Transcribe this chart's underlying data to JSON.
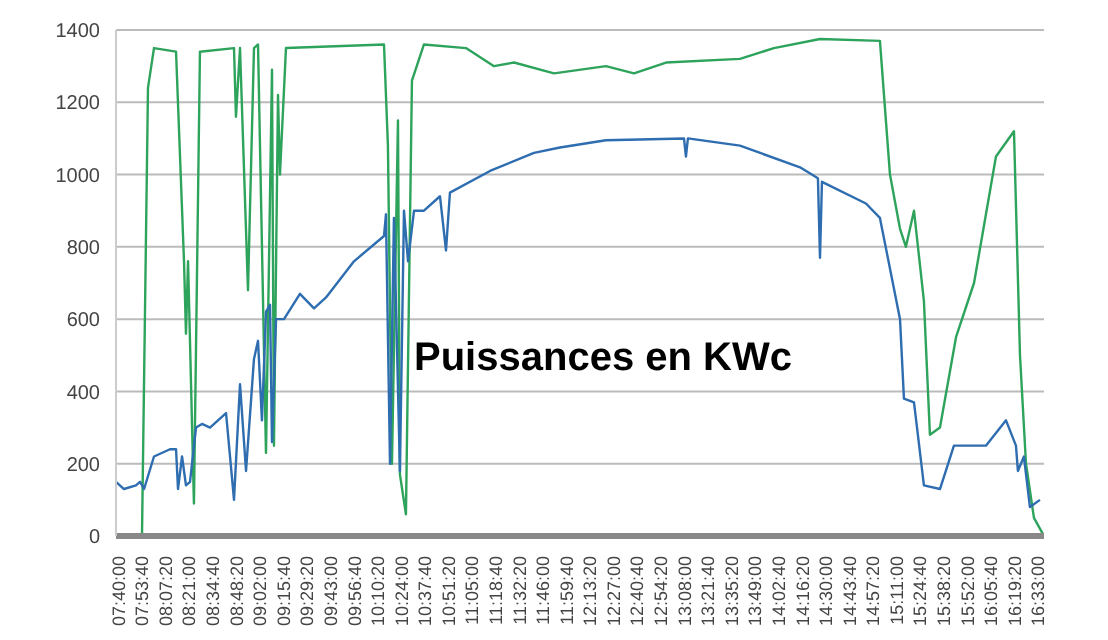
{
  "chart_data": {
    "type": "line",
    "title": "Puissances en KWc",
    "xlim": [
      7.628,
      16.593
    ],
    "ylim": [
      0,
      1400
    ],
    "yticks": [
      0,
      200,
      400,
      600,
      800,
      1000,
      1200,
      1400
    ],
    "grid": "y",
    "legend": false,
    "marker": "none",
    "line_style": "solid",
    "xticks": [
      {
        "value": 7.6667,
        "label": "07:40:00"
      },
      {
        "value": 7.8944,
        "label": "07:53:40"
      },
      {
        "value": 8.1222,
        "label": "08:07:20"
      },
      {
        "value": 8.35,
        "label": "08:21:00"
      },
      {
        "value": 8.5778,
        "label": "08:34:40"
      },
      {
        "value": 8.8056,
        "label": "08:48:20"
      },
      {
        "value": 9.0333,
        "label": "09:02:00"
      },
      {
        "value": 9.2611,
        "label": "09:15:40"
      },
      {
        "value": 9.4889,
        "label": "09:29:20"
      },
      {
        "value": 9.7167,
        "label": "09:43:00"
      },
      {
        "value": 9.9444,
        "label": "09:56:40"
      },
      {
        "value": 10.1722,
        "label": "10:10:20"
      },
      {
        "value": 10.4,
        "label": "10:24:00"
      },
      {
        "value": 10.6278,
        "label": "10:37:40"
      },
      {
        "value": 10.8556,
        "label": "10:51:20"
      },
      {
        "value": 11.0833,
        "label": "11:05:00"
      },
      {
        "value": 11.3111,
        "label": "11:18:40"
      },
      {
        "value": 11.5389,
        "label": "11:32:20"
      },
      {
        "value": 11.7667,
        "label": "11:46:00"
      },
      {
        "value": 11.9944,
        "label": "11:59:40"
      },
      {
        "value": 12.2222,
        "label": "12:13:20"
      },
      {
        "value": 12.45,
        "label": "12:27:00"
      },
      {
        "value": 12.6778,
        "label": "12:40:40"
      },
      {
        "value": 12.9056,
        "label": "12:54:20"
      },
      {
        "value": 13.1333,
        "label": "13:08:00"
      },
      {
        "value": 13.3611,
        "label": "13:21:40"
      },
      {
        "value": 13.5889,
        "label": "13:35:20"
      },
      {
        "value": 13.8167,
        "label": "13:49:00"
      },
      {
        "value": 14.0444,
        "label": "14:02:40"
      },
      {
        "value": 14.2722,
        "label": "14:16:20"
      },
      {
        "value": 14.5,
        "label": "14:30:00"
      },
      {
        "value": 14.7278,
        "label": "14:43:40"
      },
      {
        "value": 14.9556,
        "label": "14:57:20"
      },
      {
        "value": 15.1833,
        "label": "15:11:00"
      },
      {
        "value": 15.4111,
        "label": "15:24:40"
      },
      {
        "value": 15.6389,
        "label": "15:38:20"
      },
      {
        "value": 15.8667,
        "label": "15:52:00"
      },
      {
        "value": 16.0944,
        "label": "16:05:40"
      },
      {
        "value": 16.3222,
        "label": "16:19:20"
      },
      {
        "value": 16.55,
        "label": "16:33:00"
      }
    ],
    "series": [
      {
        "color": "#2ea35c",
        "x": [
          7.628,
          7.879,
          7.937,
          7.995,
          8.208,
          8.285,
          8.304,
          8.324,
          8.381,
          8.439,
          8.768,
          8.787,
          8.826,
          8.903,
          8.961,
          9.0,
          9.077,
          9.135,
          9.154,
          9.193,
          9.212,
          9.27,
          10.217,
          10.255,
          10.294,
          10.352,
          10.371,
          10.429,
          10.487,
          10.603,
          11.009,
          11.28,
          11.473,
          11.859,
          12.361,
          12.632,
          12.941,
          13.656,
          13.984,
          14.429,
          15.008,
          15.105,
          15.202,
          15.259,
          15.337,
          15.433,
          15.491,
          15.588,
          15.743,
          15.917,
          16.129,
          16.303,
          16.361,
          16.419,
          16.496,
          16.593
        ],
        "values": [
          0,
          0,
          1240,
          1350,
          1340,
          760,
          560,
          760,
          90,
          1340,
          1350,
          1160,
          1350,
          680,
          1350,
          1360,
          230,
          1290,
          250,
          1220,
          1000,
          1350,
          1360,
          1080,
          200,
          1150,
          170,
          60,
          1260,
          1360,
          1350,
          1300,
          1310,
          1280,
          1300,
          1280,
          1310,
          1320,
          1350,
          1375,
          1370,
          1000,
          850,
          800,
          900,
          650,
          280,
          300,
          550,
          700,
          1050,
          1120,
          500,
          200,
          50,
          0
        ]
      },
      {
        "color": "#2e6db0",
        "x": [
          7.628,
          7.705,
          7.821,
          7.86,
          7.899,
          7.995,
          8.15,
          8.208,
          8.227,
          8.266,
          8.304,
          8.343,
          8.401,
          8.459,
          8.536,
          8.691,
          8.768,
          8.826,
          8.884,
          8.961,
          9.0,
          9.038,
          9.077,
          9.116,
          9.135,
          9.174,
          9.251,
          9.405,
          9.541,
          9.657,
          9.927,
          10.217,
          10.236,
          10.275,
          10.313,
          10.371,
          10.41,
          10.449,
          10.507,
          10.603,
          10.758,
          10.816,
          10.854,
          11.241,
          11.666,
          11.917,
          12.361,
          13.115,
          13.134,
          13.153,
          13.656,
          14.236,
          14.409,
          14.429,
          14.448,
          14.873,
          15.008,
          15.202,
          15.24,
          15.337,
          15.433,
          15.588,
          15.723,
          16.032,
          16.226,
          16.322,
          16.341,
          16.399,
          16.457,
          16.554
        ],
        "values": [
          150,
          130,
          140,
          150,
          130,
          220,
          240,
          240,
          130,
          220,
          140,
          150,
          300,
          310,
          300,
          340,
          100,
          420,
          180,
          490,
          540,
          320,
          620,
          640,
          260,
          600,
          600,
          670,
          630,
          660,
          760,
          830,
          890,
          200,
          880,
          180,
          900,
          760,
          900,
          900,
          940,
          790,
          950,
          1010,
          1060,
          1075,
          1095,
          1100,
          1050,
          1100,
          1080,
          1020,
          990,
          770,
          980,
          920,
          880,
          600,
          380,
          370,
          140,
          130,
          250,
          250,
          320,
          250,
          180,
          220,
          80,
          100
        ]
      }
    ]
  }
}
